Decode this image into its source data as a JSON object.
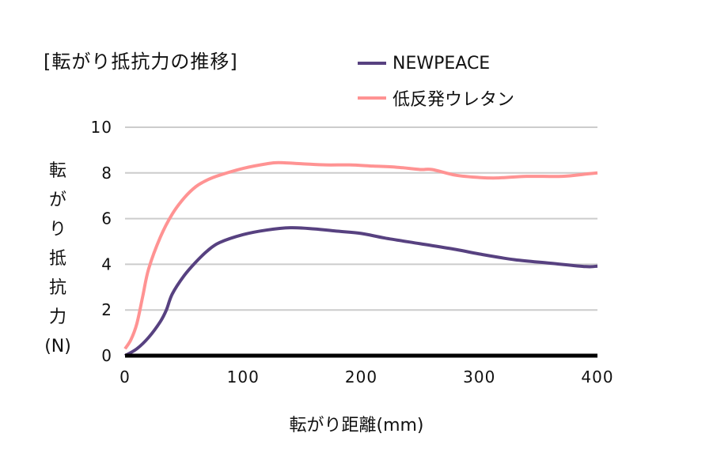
{
  "chart_data": {
    "type": "line",
    "title": "[転がり抵抗力の推移]",
    "xlabel": "転がり距離(mm)",
    "ylabel_chars": [
      "転",
      "が",
      "り",
      "抵",
      "抗",
      "力",
      "(N)"
    ],
    "xlim": [
      0,
      400
    ],
    "ylim": [
      0,
      10
    ],
    "xticks": [
      0,
      100,
      200,
      300,
      400
    ],
    "yticks": [
      0,
      2,
      4,
      6,
      8,
      10
    ],
    "grid": true,
    "legend_position": "top-right",
    "series": [
      {
        "name": "NEWPEACE",
        "color": "#574180",
        "x": [
          0,
          10,
          20,
          30,
          35,
          40,
          50,
          60,
          70,
          80,
          100,
          120,
          140,
          160,
          180,
          200,
          220,
          250,
          280,
          300,
          330,
          360,
          390,
          400
        ],
        "y": [
          0,
          0.3,
          0.8,
          1.5,
          2.0,
          2.7,
          3.5,
          4.1,
          4.6,
          4.95,
          5.3,
          5.5,
          5.6,
          5.55,
          5.45,
          5.35,
          5.15,
          4.9,
          4.65,
          4.45,
          4.2,
          4.05,
          3.9,
          3.92
        ]
      },
      {
        "name": "低反発ウレタン",
        "color": "#ff9393",
        "x": [
          0,
          5,
          10,
          15,
          20,
          30,
          40,
          50,
          60,
          70,
          80,
          100,
          120,
          130,
          150,
          170,
          190,
          210,
          230,
          250,
          260,
          280,
          300,
          315,
          340,
          370,
          390,
          400
        ],
        "y": [
          0.3,
          0.7,
          1.4,
          2.6,
          3.8,
          5.2,
          6.2,
          6.9,
          7.4,
          7.7,
          7.9,
          8.2,
          8.4,
          8.45,
          8.4,
          8.35,
          8.35,
          8.3,
          8.25,
          8.15,
          8.15,
          7.9,
          7.8,
          7.78,
          7.85,
          7.85,
          7.95,
          8.0
        ]
      }
    ]
  }
}
